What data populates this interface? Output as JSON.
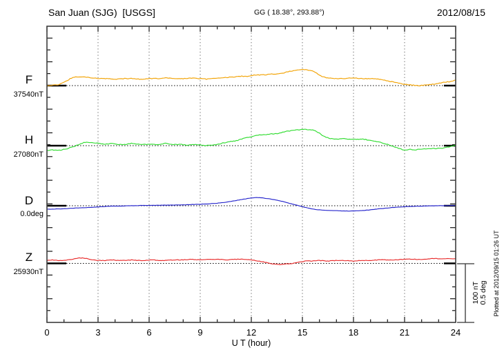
{
  "header": {
    "title": "San Juan (SJG)  [USGS]",
    "coords": "GG ( 18.38°, 293.88°)",
    "date": "2012/08/15"
  },
  "footer_note": "Plotted at 2012/09/15 01:26 UT",
  "chart_data": {
    "type": "line",
    "title": "San Juan (SJG) [USGS] magnetogram 2012/08/15",
    "xlabel": "U T (hour)",
    "ylabel": "",
    "x_range": [
      0,
      24
    ],
    "x_major_ticks": [
      0,
      3,
      6,
      9,
      12,
      15,
      18,
      21,
      24
    ],
    "x_minor_step": 1,
    "grid_hours": [
      3,
      6,
      9,
      12,
      15,
      18,
      21
    ],
    "grid_style": "dotted-vertical",
    "legend_position": "left-margin",
    "scale_bar": {
      "labels": [
        "100 nT",
        "0.5 deg"
      ],
      "nT": 100,
      "deg": 0.5
    },
    "series": [
      {
        "name": "F",
        "unit": "nT",
        "baseline_value": 37540,
        "baseline_label": "37540nT",
        "color": "#F2A202",
        "points": [
          [
            0,
            0
          ],
          [
            0.3,
            1
          ],
          [
            0.6,
            1
          ],
          [
            0.9,
            4
          ],
          [
            1.2,
            9
          ],
          [
            1.5,
            14
          ],
          [
            1.8,
            15
          ],
          [
            2.1,
            15
          ],
          [
            2.4,
            14
          ],
          [
            2.8,
            13
          ],
          [
            3.2,
            12
          ],
          [
            3.6,
            12
          ],
          [
            4,
            11
          ],
          [
            4.5,
            12
          ],
          [
            5,
            12
          ],
          [
            5.5,
            11
          ],
          [
            6,
            12
          ],
          [
            6.5,
            12
          ],
          [
            7,
            13
          ],
          [
            7.5,
            12
          ],
          [
            8,
            12
          ],
          [
            8.5,
            13
          ],
          [
            9,
            12
          ],
          [
            9.4,
            11
          ],
          [
            9.8,
            12
          ],
          [
            10.2,
            13
          ],
          [
            10.6,
            14
          ],
          [
            11,
            15
          ],
          [
            11.4,
            16
          ],
          [
            11.8,
            16
          ],
          [
            12.2,
            18
          ],
          [
            12.6,
            18
          ],
          [
            13,
            19
          ],
          [
            13.4,
            20
          ],
          [
            13.8,
            21
          ],
          [
            14.2,
            24
          ],
          [
            14.6,
            26
          ],
          [
            15,
            27
          ],
          [
            15.3,
            27
          ],
          [
            15.6,
            25
          ],
          [
            15.9,
            20
          ],
          [
            16.2,
            15
          ],
          [
            16.5,
            13
          ],
          [
            17,
            12
          ],
          [
            17.5,
            12
          ],
          [
            18,
            13
          ],
          [
            18.5,
            12
          ],
          [
            19,
            12
          ],
          [
            19.4,
            11
          ],
          [
            19.8,
            9
          ],
          [
            20.2,
            7
          ],
          [
            20.6,
            5
          ],
          [
            21,
            2
          ],
          [
            21.4,
            1
          ],
          [
            21.8,
            0
          ],
          [
            22.2,
            1
          ],
          [
            22.6,
            2
          ],
          [
            23,
            4
          ],
          [
            23.4,
            6
          ],
          [
            23.7,
            7
          ],
          [
            24,
            9
          ]
        ]
      },
      {
        "name": "H",
        "unit": "nT",
        "baseline_value": 27080,
        "baseline_label": "27080nT",
        "color": "#30DC30",
        "points": [
          [
            0,
            -8
          ],
          [
            0.3,
            -7
          ],
          [
            0.6,
            -8
          ],
          [
            0.9,
            -7
          ],
          [
            1.2,
            -5
          ],
          [
            1.5,
            -2
          ],
          [
            1.8,
            1
          ],
          [
            2,
            4
          ],
          [
            2.3,
            6
          ],
          [
            2.6,
            5
          ],
          [
            3,
            4
          ],
          [
            3.4,
            2
          ],
          [
            3.8,
            4
          ],
          [
            4.2,
            2
          ],
          [
            4.6,
            2
          ],
          [
            5,
            4
          ],
          [
            5.4,
            2
          ],
          [
            5.8,
            2
          ],
          [
            6.2,
            2
          ],
          [
            6.6,
            2
          ],
          [
            7,
            4
          ],
          [
            7.4,
            2
          ],
          [
            7.8,
            2
          ],
          [
            8.2,
            1
          ],
          [
            8.6,
            2
          ],
          [
            9,
            1
          ],
          [
            9.3,
            0
          ],
          [
            9.6,
            1
          ],
          [
            10,
            2
          ],
          [
            10.4,
            5
          ],
          [
            10.8,
            7
          ],
          [
            11.2,
            9
          ],
          [
            11.6,
            13
          ],
          [
            12,
            15
          ],
          [
            12.4,
            18
          ],
          [
            12.8,
            19
          ],
          [
            13.2,
            20
          ],
          [
            13.6,
            21
          ],
          [
            14,
            24
          ],
          [
            14.4,
            26
          ],
          [
            14.8,
            27
          ],
          [
            15.2,
            28
          ],
          [
            15.5,
            27
          ],
          [
            15.8,
            25
          ],
          [
            16.1,
            19
          ],
          [
            16.4,
            14
          ],
          [
            16.7,
            12
          ],
          [
            17,
            11
          ],
          [
            17.4,
            12
          ],
          [
            17.8,
            11
          ],
          [
            18.2,
            11
          ],
          [
            18.6,
            11
          ],
          [
            19,
            9
          ],
          [
            19.4,
            7
          ],
          [
            19.8,
            4
          ],
          [
            20.2,
            0
          ],
          [
            20.6,
            -4
          ],
          [
            21,
            -8
          ],
          [
            21.3,
            -6
          ],
          [
            21.6,
            -7
          ],
          [
            22,
            -6
          ],
          [
            22.4,
            -5
          ],
          [
            22.8,
            -5
          ],
          [
            23.2,
            -4
          ],
          [
            23.6,
            -2
          ],
          [
            24,
            1
          ]
        ]
      },
      {
        "name": "D",
        "unit": "deg",
        "baseline_value": 0.0,
        "baseline_label": "0.0deg",
        "color": "#2424CC",
        "points": [
          [
            0,
            -0.03
          ],
          [
            0.4,
            -0.028
          ],
          [
            0.8,
            -0.027
          ],
          [
            1.2,
            -0.024
          ],
          [
            1.6,
            -0.02
          ],
          [
            2,
            -0.018
          ],
          [
            2.4,
            -0.015
          ],
          [
            2.8,
            -0.012
          ],
          [
            3.2,
            -0.008
          ],
          [
            3.6,
            -0.005
          ],
          [
            4,
            -0.003
          ],
          [
            4.5,
            -0.002
          ],
          [
            5,
            0.0
          ],
          [
            5.5,
            0.002
          ],
          [
            6,
            0.003
          ],
          [
            6.5,
            0.004
          ],
          [
            7,
            0.005
          ],
          [
            7.5,
            0.006
          ],
          [
            8,
            0.008
          ],
          [
            8.5,
            0.01
          ],
          [
            9,
            0.013
          ],
          [
            9.5,
            0.016
          ],
          [
            10,
            0.022
          ],
          [
            10.5,
            0.03
          ],
          [
            11,
            0.042
          ],
          [
            11.5,
            0.055
          ],
          [
            12,
            0.066
          ],
          [
            12.3,
            0.07
          ],
          [
            12.6,
            0.068
          ],
          [
            13,
            0.06
          ],
          [
            13.4,
            0.05
          ],
          [
            13.8,
            0.038
          ],
          [
            14.2,
            0.022
          ],
          [
            14.6,
            0.008
          ],
          [
            15,
            -0.008
          ],
          [
            15.4,
            -0.022
          ],
          [
            15.8,
            -0.032
          ],
          [
            16.2,
            -0.038
          ],
          [
            16.6,
            -0.04
          ],
          [
            17,
            -0.042
          ],
          [
            17.4,
            -0.044
          ],
          [
            17.8,
            -0.045
          ],
          [
            18.2,
            -0.043
          ],
          [
            18.6,
            -0.04
          ],
          [
            19,
            -0.035
          ],
          [
            19.4,
            -0.028
          ],
          [
            19.8,
            -0.022
          ],
          [
            20.2,
            -0.016
          ],
          [
            20.6,
            -0.012
          ],
          [
            21,
            -0.008
          ],
          [
            21.5,
            -0.005
          ],
          [
            22,
            -0.003
          ],
          [
            22.5,
            -0.001
          ],
          [
            23,
            0.0
          ],
          [
            23.5,
            0.001
          ],
          [
            24,
            0.002
          ]
        ]
      },
      {
        "name": "Z",
        "unit": "nT",
        "baseline_value": 25930,
        "baseline_label": "25930nT",
        "color": "#E82A2A",
        "points": [
          [
            0,
            5
          ],
          [
            0.3,
            6
          ],
          [
            0.6,
            5
          ],
          [
            0.9,
            5
          ],
          [
            1.2,
            6
          ],
          [
            1.5,
            7
          ],
          [
            1.8,
            9
          ],
          [
            2.1,
            9
          ],
          [
            2.4,
            8
          ],
          [
            2.7,
            6
          ],
          [
            3,
            5
          ],
          [
            3.4,
            5
          ],
          [
            3.8,
            6
          ],
          [
            4.2,
            5
          ],
          [
            4.6,
            5
          ],
          [
            5,
            6
          ],
          [
            5.4,
            5
          ],
          [
            5.8,
            5
          ],
          [
            6.2,
            6
          ],
          [
            6.6,
            5
          ],
          [
            7,
            5
          ],
          [
            7.5,
            6
          ],
          [
            8,
            6
          ],
          [
            8.5,
            7
          ],
          [
            9,
            6
          ],
          [
            9.5,
            7
          ],
          [
            10,
            7
          ],
          [
            10.5,
            6
          ],
          [
            11,
            7
          ],
          [
            11.5,
            7
          ],
          [
            12,
            6
          ],
          [
            12.4,
            4
          ],
          [
            12.8,
            2
          ],
          [
            13.2,
            -1
          ],
          [
            13.6,
            -2
          ],
          [
            14,
            -1
          ],
          [
            14.4,
            0
          ],
          [
            14.8,
            2
          ],
          [
            15.2,
            4
          ],
          [
            15.6,
            4
          ],
          [
            16,
            5
          ],
          [
            16.5,
            4
          ],
          [
            17,
            5
          ],
          [
            17.5,
            5
          ],
          [
            18,
            4
          ],
          [
            18.5,
            5
          ],
          [
            19,
            5
          ],
          [
            19.5,
            6
          ],
          [
            20,
            6
          ],
          [
            20.5,
            6
          ],
          [
            21,
            7
          ],
          [
            21.5,
            7
          ],
          [
            22,
            7
          ],
          [
            22.5,
            8
          ],
          [
            23,
            8
          ],
          [
            23.5,
            8
          ],
          [
            24,
            8
          ]
        ]
      }
    ]
  }
}
